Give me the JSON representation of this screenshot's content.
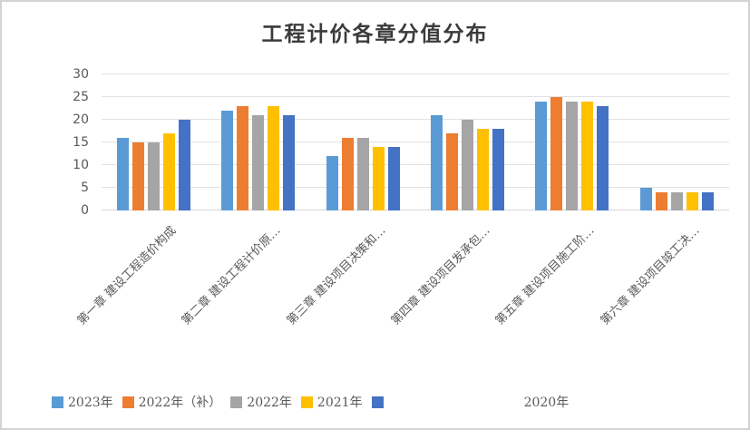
{
  "chart_data": {
    "type": "bar",
    "title": "工程计价各章分值分布",
    "xlabel": "",
    "ylabel": "",
    "ylim": [
      0,
      30
    ],
    "y_ticks": [
      0,
      5,
      10,
      15,
      20,
      25,
      30
    ],
    "grid": true,
    "legend_position": "bottom",
    "categories": [
      "第一章 建设工程造价构成",
      "第二章 建设工程计价原…",
      "第三章 建设项目决策和…",
      "第四章 建设项目发承包…",
      "第五章 建设项目施工阶…",
      "第六章 建设项目竣工决…"
    ],
    "series": [
      {
        "name": "2023年",
        "color": "#5B9BD5",
        "values": [
          16,
          22,
          12,
          21,
          24,
          5
        ]
      },
      {
        "name": "2022年（补）",
        "color": "#ED7D31",
        "values": [
          15,
          23,
          16,
          17,
          25,
          4
        ]
      },
      {
        "name": "2022年",
        "color": "#A5A5A5",
        "values": [
          15,
          21,
          16,
          20,
          24,
          4
        ]
      },
      {
        "name": "2021年",
        "color": "#FFC000",
        "values": [
          17,
          23,
          14,
          18,
          24,
          4
        ]
      },
      {
        "name": "2020年",
        "color": "#4472C4",
        "values": [
          20,
          21,
          14,
          18,
          23,
          4
        ]
      }
    ]
  },
  "frame": {
    "border_color": "#D3D3D3",
    "gridline_color": "#E2E2E2",
    "text_color": "#595959"
  }
}
